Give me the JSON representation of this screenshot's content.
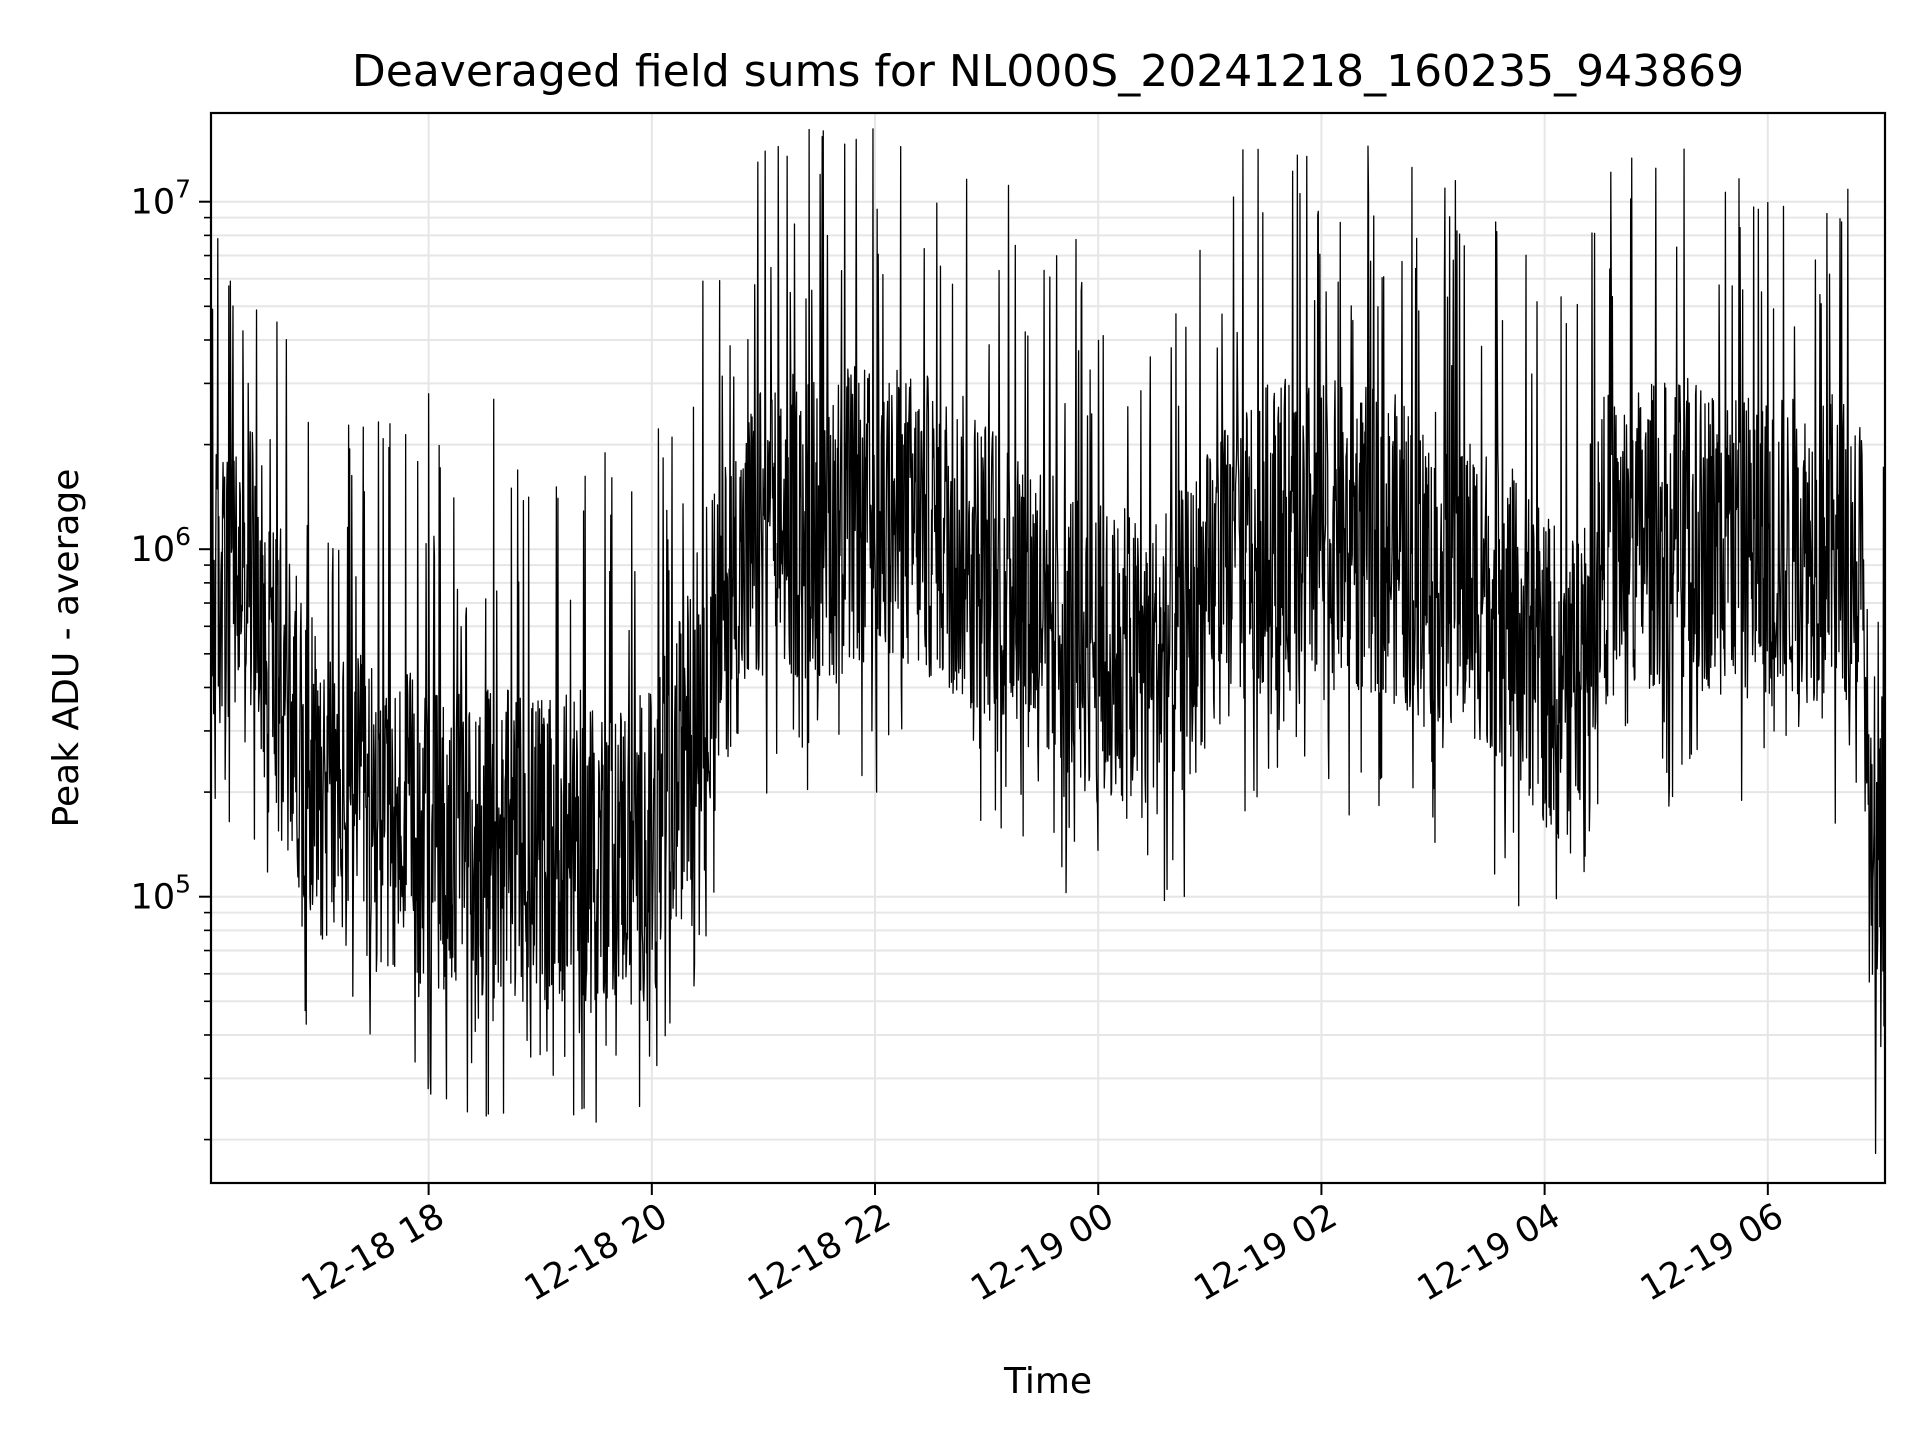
{
  "chart_data": {
    "type": "line",
    "title": "Deaveraged field sums for NL000S_20241218_160235_943869",
    "xlabel": "Time",
    "ylabel": "Peak ADU - average",
    "yscale": "log",
    "ylim": [
      15000,
      18000000
    ],
    "xlim": [
      "2024-12-18 16:03",
      "2024-12-19 07:03"
    ],
    "grid": true,
    "line_color": "#000000",
    "x_ticks": [
      {
        "value": "2024-12-18 18:00",
        "label": "12-18 18"
      },
      {
        "value": "2024-12-18 20:00",
        "label": "12-18 20"
      },
      {
        "value": "2024-12-18 22:00",
        "label": "12-18 22"
      },
      {
        "value": "2024-12-19 00:00",
        "label": "12-19 00"
      },
      {
        "value": "2024-12-19 02:00",
        "label": "12-19 02"
      },
      {
        "value": "2024-12-19 04:00",
        "label": "12-19 04"
      },
      {
        "value": "2024-12-19 06:00",
        "label": "12-19 06"
      }
    ],
    "y_ticks": [
      {
        "value": 100000,
        "base": "10",
        "exp": "5"
      },
      {
        "value": 1000000,
        "base": "10",
        "exp": "6"
      },
      {
        "value": 10000000,
        "base": "10",
        "exp": "7"
      }
    ],
    "series": [
      {
        "values_note_free": true,
        "x": [
          "2024-12-18 16:03",
          "2024-12-18 16:15",
          "2024-12-18 16:25",
          "2024-12-18 16:35",
          "2024-12-18 16:50",
          "2024-12-18 17:05",
          "2024-12-18 17:30",
          "2024-12-18 18:00",
          "2024-12-18 18:30",
          "2024-12-18 19:00",
          "2024-12-18 19:30",
          "2024-12-18 20:00",
          "2024-12-18 20:15",
          "2024-12-18 20:30",
          "2024-12-18 20:45",
          "2024-12-18 21:00",
          "2024-12-18 21:30",
          "2024-12-18 22:00",
          "2024-12-18 22:30",
          "2024-12-18 23:00",
          "2024-12-18 23:30",
          "2024-12-19 00:00",
          "2024-12-19 00:20",
          "2024-12-19 00:40",
          "2024-12-19 01:00",
          "2024-12-19 01:15",
          "2024-12-19 01:30",
          "2024-12-19 02:00",
          "2024-12-19 02:30",
          "2024-12-19 03:00",
          "2024-12-19 03:30",
          "2024-12-19 04:00",
          "2024-12-19 04:15",
          "2024-12-19 04:30",
          "2024-12-19 05:00",
          "2024-12-19 05:30",
          "2024-12-19 06:00",
          "2024-12-19 06:30",
          "2024-12-19 06:50",
          "2024-12-19 06:57",
          "2024-12-19 07:03"
        ],
        "values": [
          700000,
          800000,
          900000,
          500000,
          300000,
          200000,
          170000,
          150000,
          140000,
          140000,
          140000,
          140000,
          230000,
          500000,
          800000,
          1100000,
          1200000,
          1200000,
          1150000,
          900000,
          700000,
          500000,
          450000,
          500000,
          700000,
          1000000,
          1100000,
          1100000,
          1050000,
          900000,
          750000,
          450000,
          400000,
          1000000,
          1100000,
          1100000,
          1000000,
          1000000,
          1000000,
          60000,
          200000
        ],
        "peak_values": [
          {
            "x": "2024-12-18 16:23",
            "y": 3000000
          },
          {
            "x": "2024-12-18 18:00",
            "y": 2800000
          },
          {
            "x": "2024-12-18 18:35",
            "y": 2700000
          },
          {
            "x": "2024-12-18 20:57",
            "y": 13000000
          },
          {
            "x": "2024-12-19 05:11",
            "y": 7400000
          },
          {
            "x": "2024-12-19 06:28",
            "y": 5400000
          }
        ]
      }
    ]
  }
}
